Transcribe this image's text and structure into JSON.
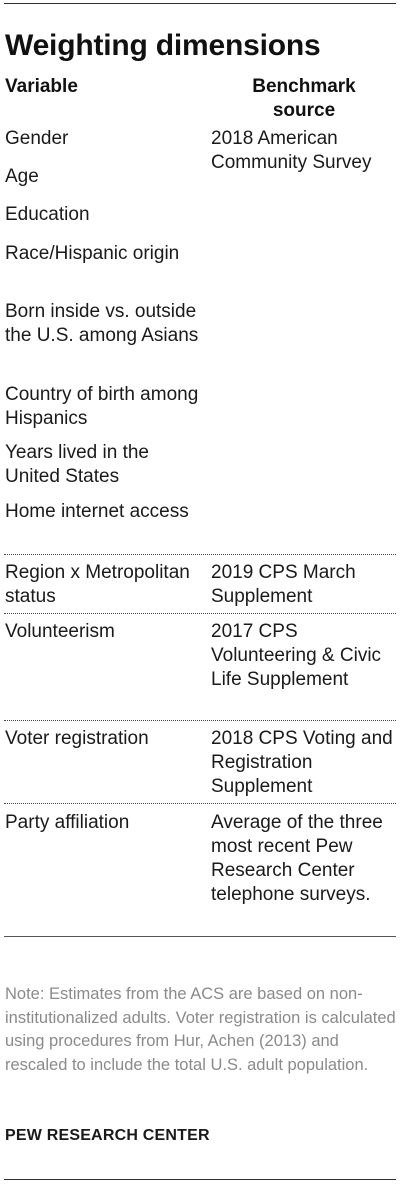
{
  "title": "Weighting dimensions",
  "headers": {
    "variable": "Variable",
    "source_line1": "Benchmark",
    "source_line2": "source"
  },
  "rows": [
    {
      "variable": "Gender",
      "source": "2018 American Community Survey"
    },
    {
      "variable": "Age"
    },
    {
      "variable": "Education"
    },
    {
      "variable": "Race/Hispanic origin"
    },
    {
      "variable": "Born inside vs. outside the U.S. among Asians"
    },
    {
      "variable": "Country of birth among Hispanics"
    },
    {
      "variable": "Years lived in the United States"
    },
    {
      "variable": "Home internet access"
    },
    {
      "variable": "Region x Metropolitan status",
      "source": "2019 CPS March Supplement"
    },
    {
      "variable": "Volunteerism",
      "source": "2017 CPS Volunteering & Civic Life Supplement"
    },
    {
      "variable": "Voter registration",
      "source": "2018 CPS Voting and Registration Supplement"
    },
    {
      "variable": "Party affiliation",
      "source": "Average of the three most recent Pew Research Center telephone surveys."
    }
  ],
  "note": "Note: Estimates from the ACS are based on non-institutionalized adults. Voter registration is calculated using procedures from Hur, Achen (2013) and rescaled to include the total U.S. adult population.",
  "credit": "PEW RESEARCH CENTER"
}
